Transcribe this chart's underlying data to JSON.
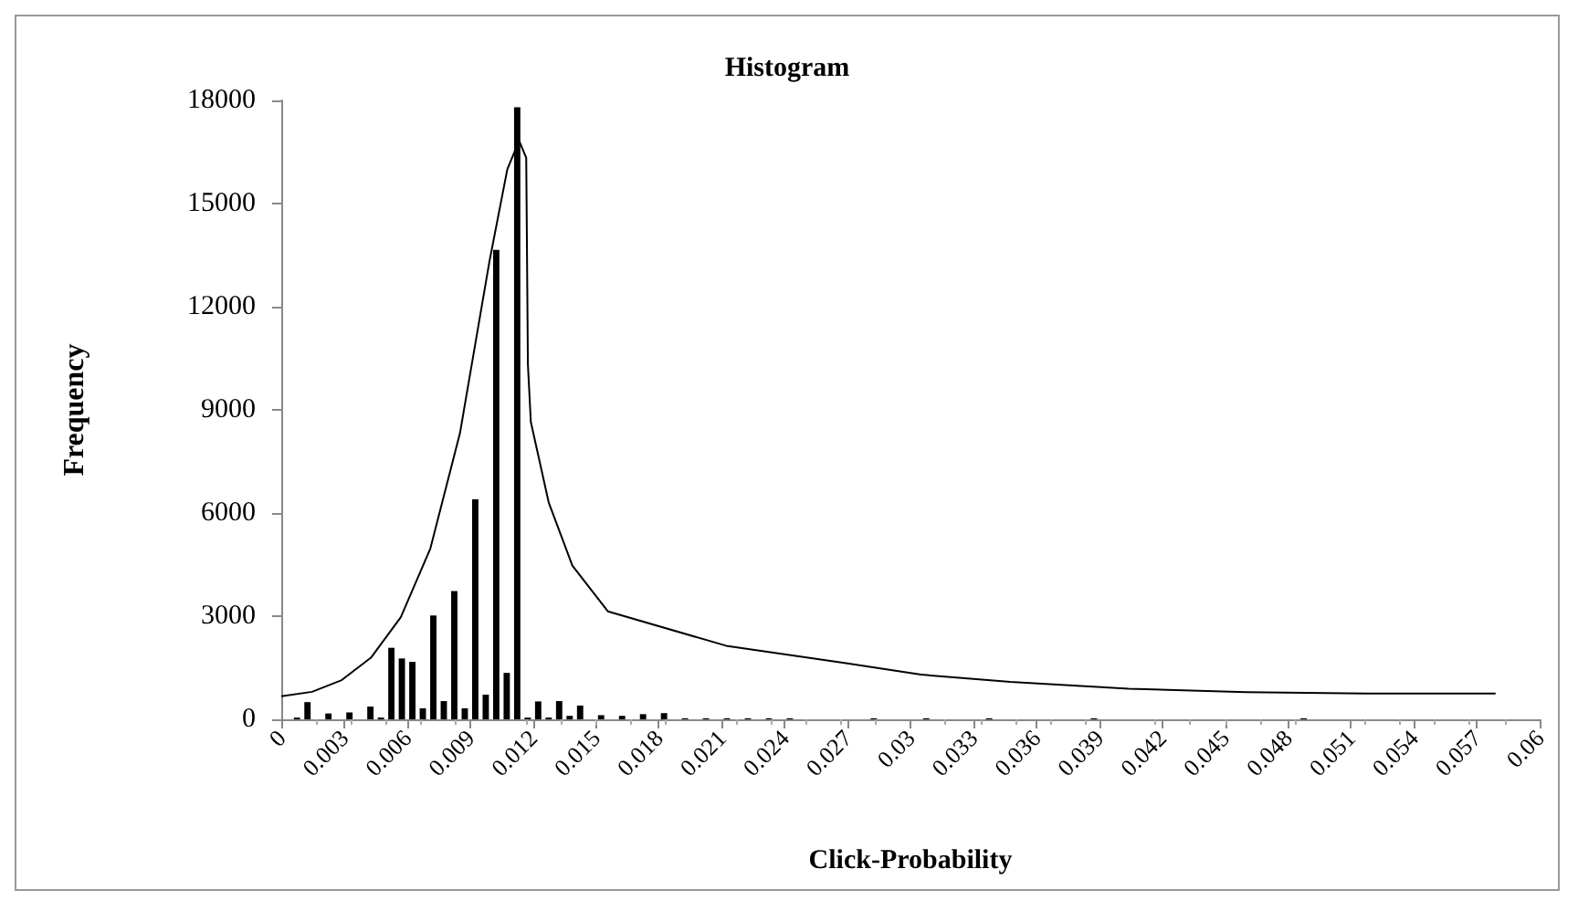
{
  "chart_data": {
    "type": "histogram",
    "title": "Histogram",
    "xlabel": "Click-Probability",
    "ylabel": "Frequency",
    "bins": [
      0,
      0.0005,
      0.001,
      0.0015,
      0.002,
      0.0025,
      0.003,
      0.0035,
      0.004,
      0.0045,
      0.005,
      0.0055,
      0.006,
      0.0065,
      0.007,
      0.0075,
      0.008,
      0.0085,
      0.009,
      0.0095,
      0.01,
      0.0105,
      0.011,
      0.0115,
      0.012,
      0.0125,
      0.013,
      0.0135,
      0.014,
      0.0145,
      0.015,
      0.0155,
      0.016,
      0.0165,
      0.017,
      0.0175,
      0.018,
      0.0185,
      0.019,
      0.0195,
      0.02,
      0.0205,
      0.021,
      0.0215,
      0.022,
      0.0225,
      0.023,
      0.0235,
      0.024,
      0.0245,
      0.025,
      0.0255,
      0.026,
      0.0265,
      0.027,
      0.0275,
      0.028,
      0.0285,
      0.029,
      0.0295,
      0.03,
      0.0305,
      0.031,
      0.0315,
      0.032,
      0.0325,
      0.033,
      0.0335,
      0.034,
      0.0345,
      0.035,
      0.0355,
      0.036,
      0.0365,
      0.037,
      0.0375,
      0.038,
      0.0385,
      0.039,
      0.0395,
      0.04,
      0.0405,
      0.041,
      0.0415,
      0.042,
      0.0425,
      0.043,
      0.0435,
      0.044,
      0.0445,
      0.045,
      0.0455,
      0.046,
      0.0465,
      0.047,
      0.0475,
      0.048,
      0.0485,
      0.049,
      0.0495,
      0.05,
      0.0505,
      0.051,
      0.0515,
      0.052,
      0.0525,
      0.053,
      0.0535,
      0.054,
      0.0545,
      0.055,
      0.0555,
      0.056,
      0.0565,
      0.057,
      0.0575,
      0.058,
      0.0585,
      0.059,
      0.0595,
      0.06
    ],
    "values": [
      0,
      50,
      500,
      0,
      170,
      0,
      200,
      0,
      370,
      50,
      2080,
      1770,
      1670,
      320,
      3020,
      530,
      3730,
      320,
      6400,
      720,
      13650,
      1350,
      17800,
      50,
      520,
      50,
      530,
      100,
      400,
      0,
      120,
      0,
      100,
      0,
      150,
      0,
      180,
      0,
      30,
      0,
      30,
      0,
      30,
      0,
      30,
      0,
      30,
      0,
      30,
      0,
      0,
      0,
      0,
      0,
      0,
      0,
      30,
      0,
      0,
      0,
      0,
      30,
      0,
      0,
      0,
      0,
      0,
      30,
      0,
      0,
      0,
      0,
      0,
      0,
      0,
      0,
      0,
      30,
      0,
      0,
      0,
      0,
      0,
      0,
      0,
      0,
      0,
      0,
      0,
      0,
      0,
      0,
      0,
      0,
      0,
      0,
      0,
      30,
      0,
      0,
      0,
      0,
      0,
      0,
      0,
      0,
      0,
      0,
      0,
      0,
      0,
      0,
      0,
      0,
      0,
      0,
      0,
      0,
      0,
      0
    ],
    "color": "#000000",
    "series": [
      {
        "type": "line",
        "color": "#000000",
        "x": [
          0,
          0.00147,
          0.00288,
          0.00429,
          0.0057,
          0.00711,
          0.00852,
          0.00993,
          0.01078,
          0.01134,
          0.01168,
          0.01176,
          0.0119,
          0.01275,
          0.01388,
          0.01557,
          0.02121,
          0.02685,
          0.0305,
          0.03476,
          0.0404,
          0.046,
          0.0517,
          0.0579
        ],
        "values": [
          670,
          800,
          1140,
          1800,
          2970,
          4970,
          8320,
          13330,
          16000,
          16830,
          16330,
          10320,
          8650,
          6310,
          4470,
          3140,
          2140,
          1640,
          1300,
          1090,
          890,
          790,
          750,
          750
        ]
      }
    ],
    "xlim": [
      0,
      0.06
    ],
    "xticks": [
      0,
      0.003,
      0.006,
      0.009,
      0.012,
      0.015,
      0.018,
      0.021,
      0.024,
      0.027,
      0.03,
      0.033,
      0.036,
      0.039,
      0.042,
      0.045,
      0.048,
      0.051,
      0.054,
      0.057,
      0.06
    ],
    "ylim": [
      0,
      18000
    ],
    "yticks": [
      0,
      3000,
      6000,
      9000,
      12000,
      15000,
      18000
    ],
    "grid": false,
    "marker": "none"
  }
}
